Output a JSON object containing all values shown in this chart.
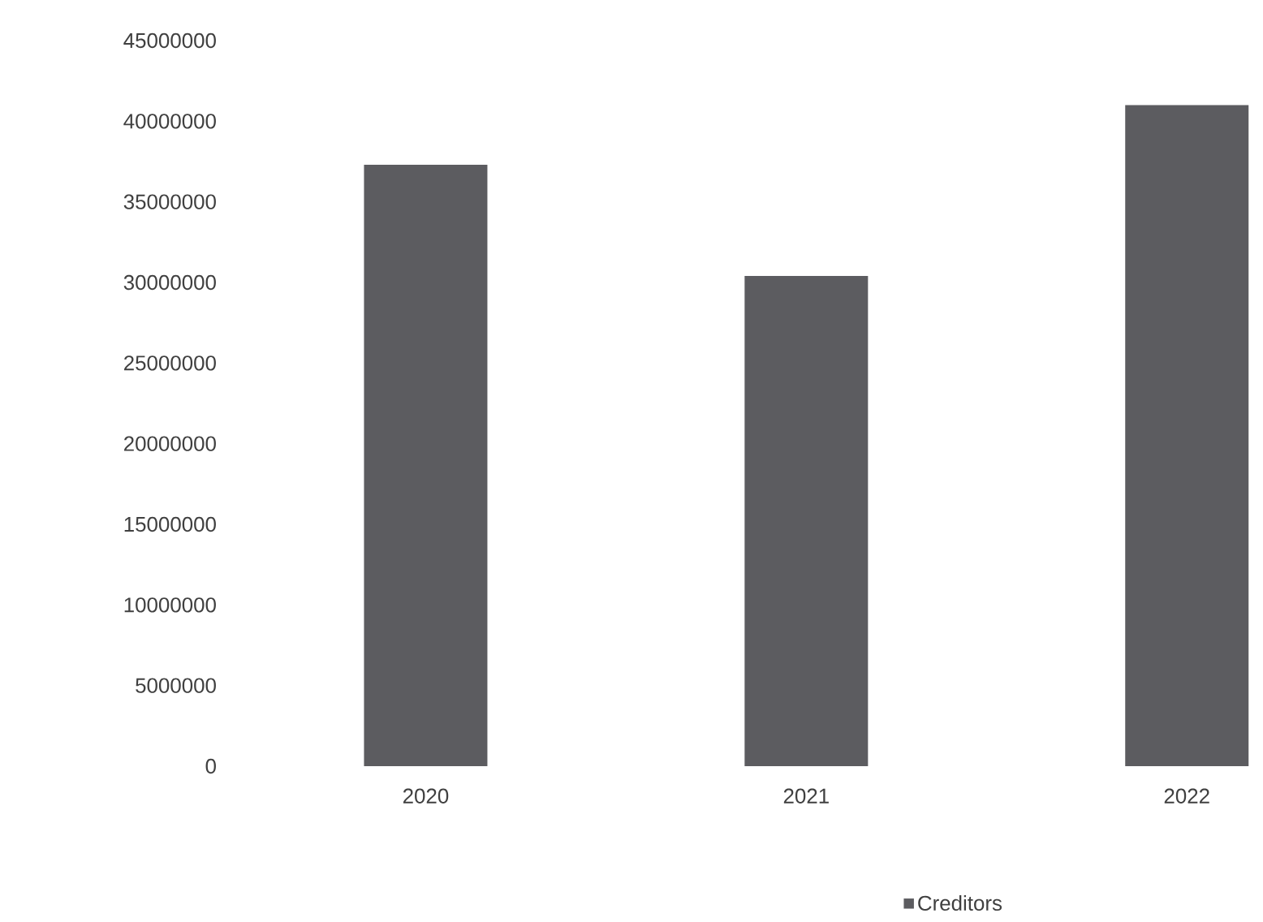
{
  "chart_data": {
    "type": "bar",
    "categories": [
      "2020",
      "2021",
      "2022"
    ],
    "series": [
      {
        "name": "Creditors",
        "color": "#5c5c60",
        "values": [
          37300000,
          30400000,
          41000000
        ]
      }
    ],
    "ylim": [
      0,
      45000000
    ],
    "yticks": [
      0,
      5000000,
      10000000,
      15000000,
      20000000,
      25000000,
      30000000,
      35000000,
      40000000,
      45000000
    ],
    "grid": false,
    "legend": "bottom"
  }
}
